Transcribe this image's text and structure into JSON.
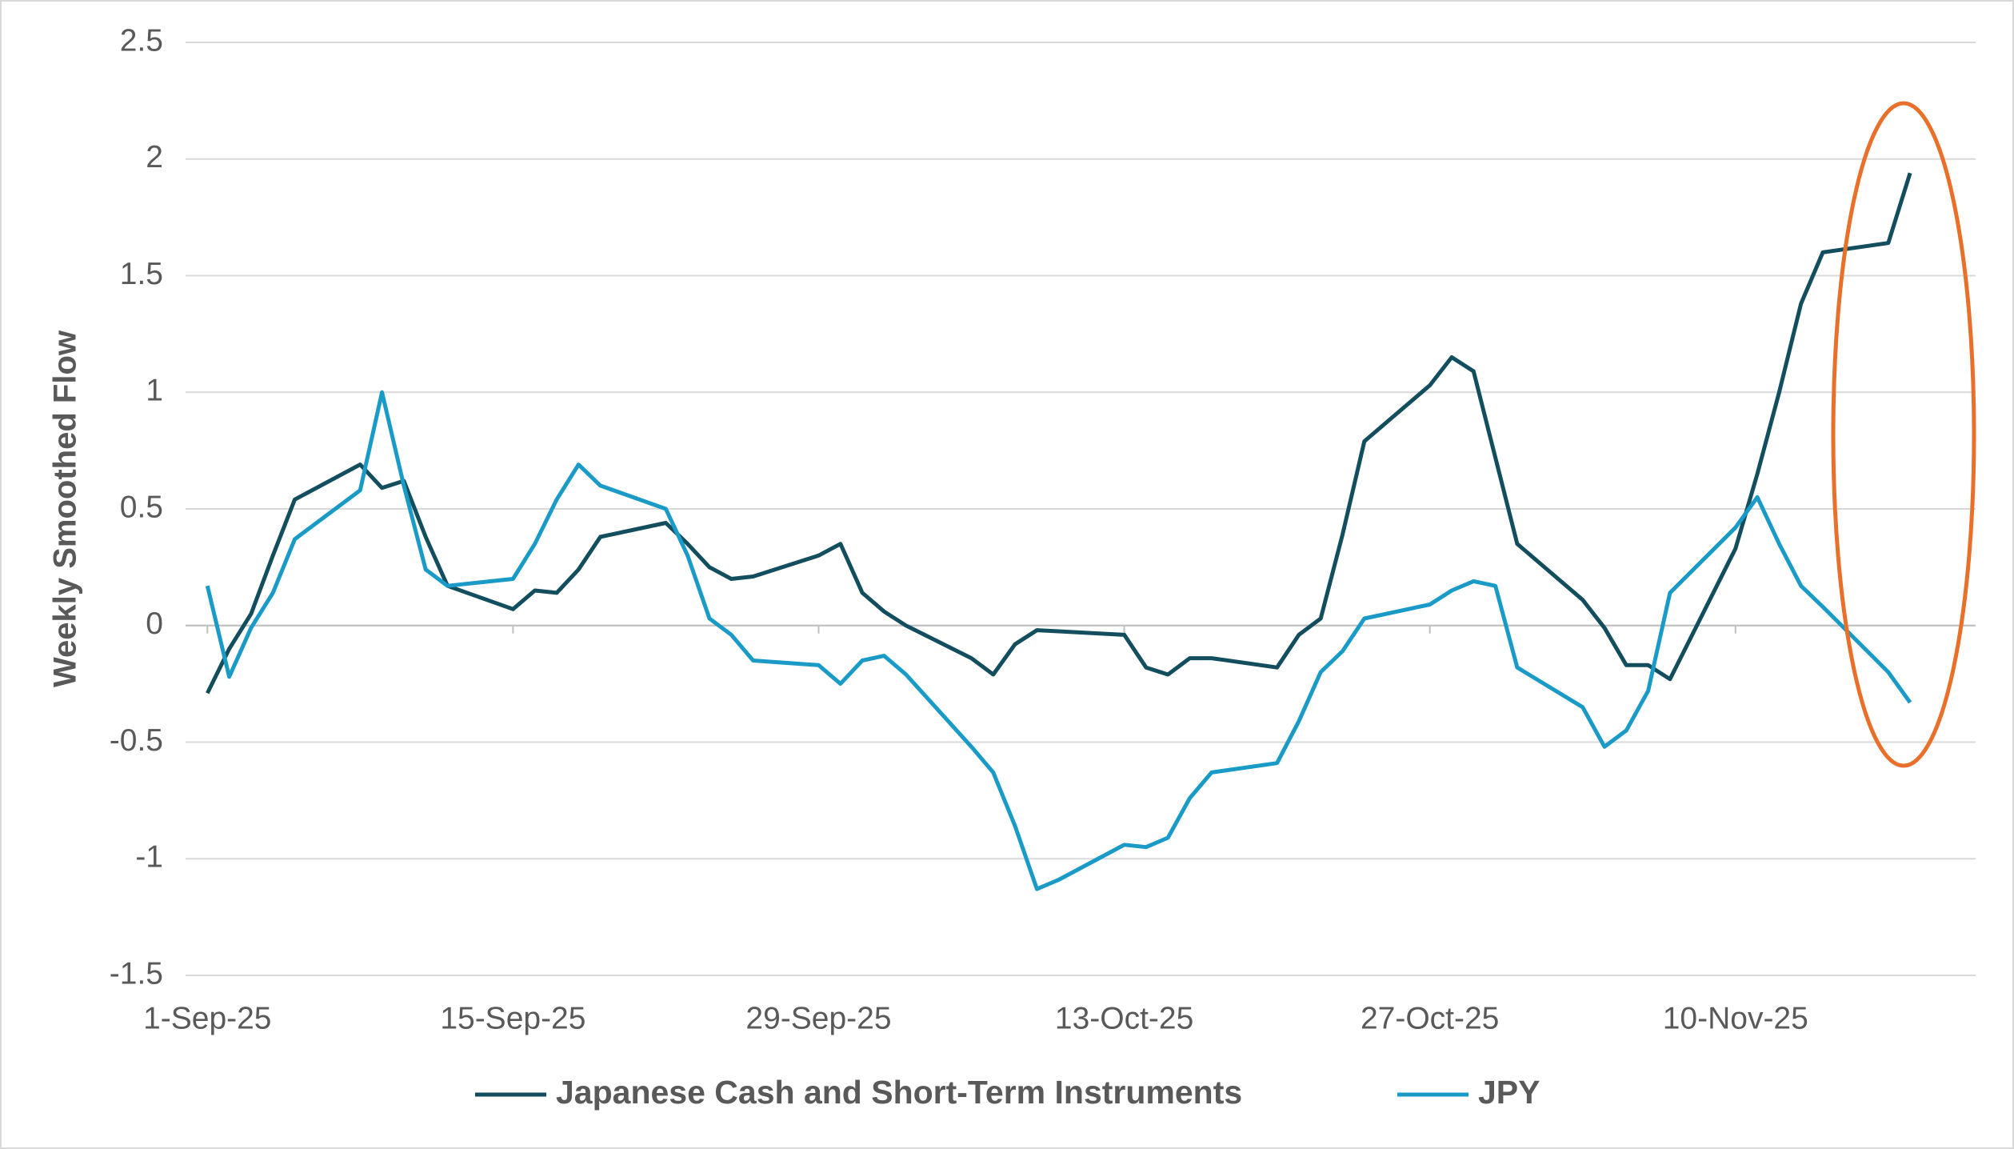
{
  "chart_data": {
    "type": "line",
    "y_label": "Weekly Smoothed Flow",
    "x": [
      "2025-09-01",
      "2025-09-02",
      "2025-09-03",
      "2025-09-04",
      "2025-09-05",
      "2025-09-08",
      "2025-09-09",
      "2025-09-10",
      "2025-09-11",
      "2025-09-12",
      "2025-09-15",
      "2025-09-16",
      "2025-09-17",
      "2025-09-18",
      "2025-09-19",
      "2025-09-22",
      "2025-09-23",
      "2025-09-24",
      "2025-09-25",
      "2025-09-26",
      "2025-09-29",
      "2025-09-30",
      "2025-10-01",
      "2025-10-02",
      "2025-10-03",
      "2025-10-06",
      "2025-10-07",
      "2025-10-08",
      "2025-10-09",
      "2025-10-10",
      "2025-10-13",
      "2025-10-14",
      "2025-10-15",
      "2025-10-16",
      "2025-10-17",
      "2025-10-20",
      "2025-10-21",
      "2025-10-22",
      "2025-10-23",
      "2025-10-24",
      "2025-10-27",
      "2025-10-28",
      "2025-10-29",
      "2025-10-30",
      "2025-10-31",
      "2025-11-03",
      "2025-11-04",
      "2025-11-05",
      "2025-11-06",
      "2025-11-07",
      "2025-11-10",
      "2025-11-11",
      "2025-11-12",
      "2025-11-13",
      "2025-11-14",
      "2025-11-17",
      "2025-11-18"
    ],
    "series": [
      {
        "name": "Japanese Cash and Short-Term Instruments",
        "color": "#134e5e",
        "values": [
          -0.29,
          -0.1,
          0.05,
          0.3,
          0.54,
          0.69,
          0.59,
          0.62,
          0.38,
          0.17,
          0.07,
          0.15,
          0.14,
          0.24,
          0.38,
          0.44,
          0.35,
          0.25,
          0.2,
          0.21,
          0.3,
          0.35,
          0.14,
          0.06,
          0.0,
          -0.14,
          -0.21,
          -0.08,
          -0.02,
          -0.025,
          -0.04,
          -0.18,
          -0.21,
          -0.14,
          -0.14,
          -0.18,
          -0.04,
          0.03,
          0.39,
          0.79,
          1.03,
          1.15,
          1.09,
          0.72,
          0.35,
          0.11,
          -0.01,
          -0.17,
          -0.17,
          -0.23,
          0.33,
          0.65,
          1.0,
          1.38,
          1.6,
          1.64,
          1.94
        ]
      },
      {
        "name": "JPY",
        "color": "#1a9bc7",
        "values": [
          0.17,
          -0.22,
          -0.01,
          0.14,
          0.37,
          0.58,
          1.0,
          0.6,
          0.24,
          0.17,
          0.2,
          0.35,
          0.54,
          0.69,
          0.6,
          0.5,
          0.3,
          0.03,
          -0.04,
          -0.15,
          -0.17,
          -0.25,
          -0.15,
          -0.13,
          -0.21,
          -0.52,
          -0.63,
          -0.86,
          -1.13,
          -1.09,
          -0.94,
          -0.95,
          -0.91,
          -0.74,
          -0.63,
          -0.59,
          -0.41,
          -0.2,
          -0.11,
          0.03,
          0.09,
          0.15,
          0.19,
          0.17,
          -0.18,
          -0.35,
          -0.52,
          -0.45,
          -0.28,
          0.14,
          0.42,
          0.55,
          0.35,
          0.17,
          0.08,
          -0.2,
          -0.33
        ]
      }
    ],
    "xlim": [
      "2025-08-31",
      "2025-11-21"
    ],
    "xticks": [
      {
        "value": "2025-09-01",
        "label": "1-Sep-25"
      },
      {
        "value": "2025-09-15",
        "label": "15-Sep-25"
      },
      {
        "value": "2025-09-29",
        "label": "29-Sep-25"
      },
      {
        "value": "2025-10-13",
        "label": "13-Oct-25"
      },
      {
        "value": "2025-10-27",
        "label": "27-Oct-25"
      },
      {
        "value": "2025-11-10",
        "label": "10-Nov-25"
      }
    ],
    "ylim": [
      -1.5,
      2.5
    ],
    "yticks": [
      -1.5,
      -1,
      -0.5,
      0,
      0.5,
      1,
      1.5,
      2,
      2.5
    ],
    "grid": true,
    "legend": "bottom"
  }
}
